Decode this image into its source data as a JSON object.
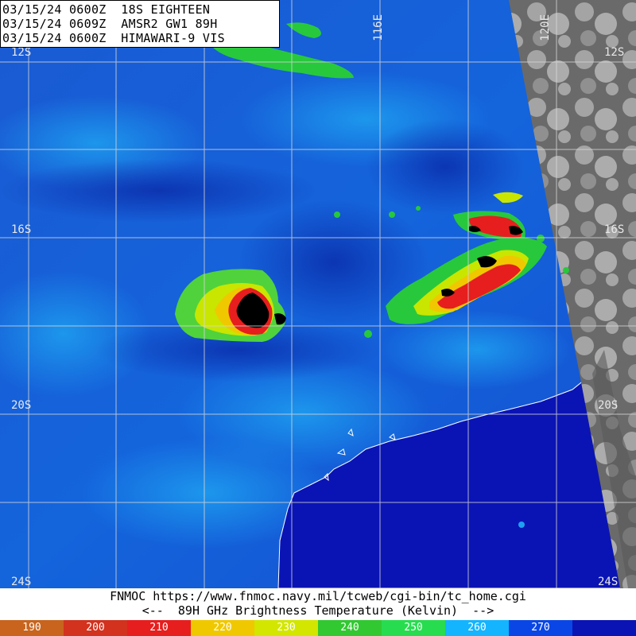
{
  "header": {
    "line1": "03/15/24 0600Z  18S EIGHTEEN",
    "line2": "03/15/24 0609Z  AMSR2 GW1 89H",
    "line3": "03/15/24 0600Z  HIMAWARI-9 VIS"
  },
  "grid": {
    "latitudes": [
      {
        "label": "12S"
      },
      {
        "label": "16S"
      },
      {
        "label": "20S"
      },
      {
        "label": "24S"
      }
    ],
    "longitudes": [
      {
        "label": "116E"
      },
      {
        "label": "120E"
      }
    ]
  },
  "footer": {
    "source": "FNMOC https://www.fnmoc.navy.mil/tcweb/cgi-bin/tc_home.cgi",
    "legend_title": "<--  89H GHz Brightness Temperature (Kelvin)  -->"
  },
  "colorbar": {
    "segments": [
      {
        "label": "190",
        "color": "#c8641e"
      },
      {
        "label": "200",
        "color": "#d2321e"
      },
      {
        "label": "210",
        "color": "#e61e1e"
      },
      {
        "label": "220",
        "color": "#f0c800"
      },
      {
        "label": "230",
        "color": "#d2e600"
      },
      {
        "label": "240",
        "color": "#32c832"
      },
      {
        "label": "250",
        "color": "#28dc50"
      },
      {
        "label": "260",
        "color": "#14b4ff"
      },
      {
        "label": "270",
        "color": "#0a46e6"
      },
      {
        "label": "",
        "color": "#0a14b4"
      }
    ]
  }
}
